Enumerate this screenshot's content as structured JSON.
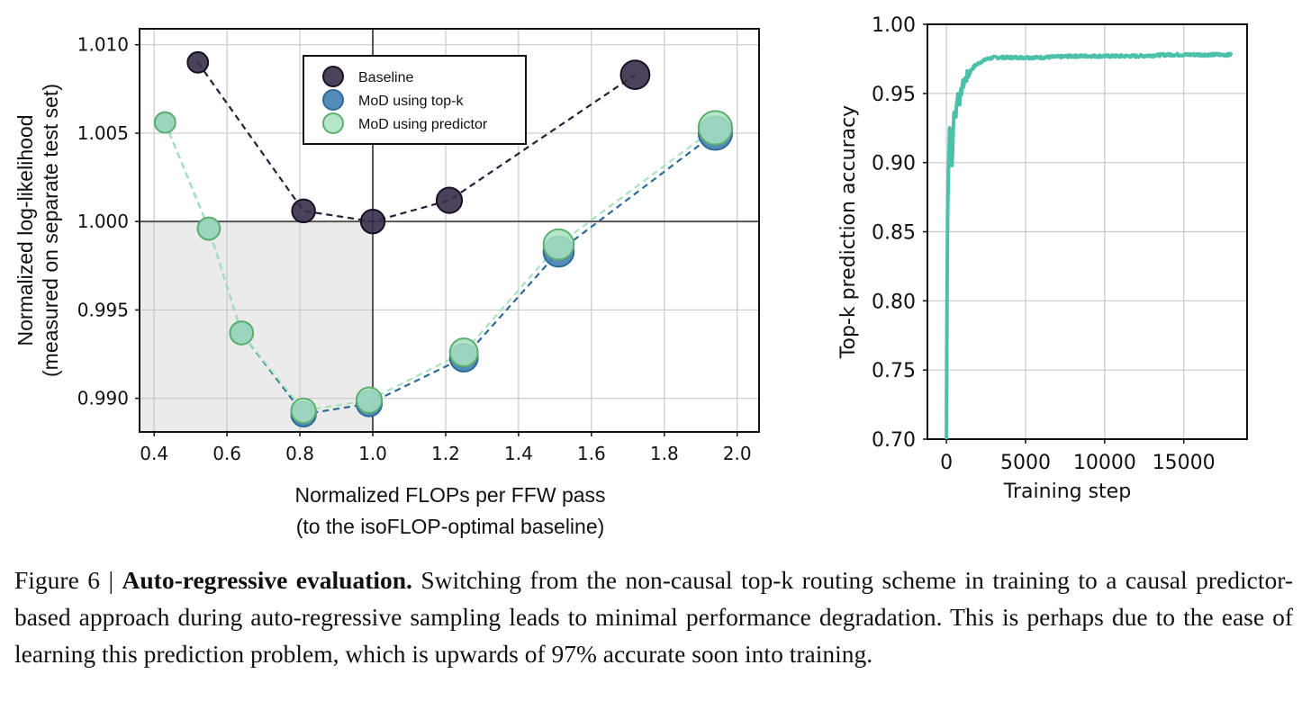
{
  "chart_data": [
    {
      "type": "scatter",
      "ylabel_lines": [
        "Normalized log-likelihood",
        "(measured on separate test set)"
      ],
      "xlabel_lines": [
        "Normalized FLOPs per FFW pass",
        "(to the isoFLOP-optimal baseline)"
      ],
      "xlim": [
        0.36,
        2.06
      ],
      "ylim": [
        0.9881,
        1.0109
      ],
      "xticks": [
        "0.4",
        "0.6",
        "0.8",
        "1.0",
        "1.2",
        "1.4",
        "1.6",
        "1.8",
        "2.0"
      ],
      "yticks": [
        "0.990",
        "0.995",
        "1.000",
        "1.005",
        "1.010"
      ],
      "grid": true,
      "legend_position": "top-center",
      "reference_lines": {
        "x": 1.0,
        "y": 1.0
      },
      "shaded_region": {
        "x": [
          0.36,
          1.0
        ],
        "y": [
          0.9881,
          1.0
        ]
      },
      "series": [
        {
          "name": "Baseline",
          "color": "#2a1c3a",
          "x": [
            0.52,
            0.81,
            1.0,
            1.21,
            1.72
          ],
          "y": [
            1.009,
            1.0006,
            1.0,
            1.0012,
            1.0083
          ],
          "size": [
            0.6,
            0.75,
            0.8,
            0.9,
            1.1
          ]
        },
        {
          "name": "MoD using top-k",
          "color": "#3e7bab",
          "x": [
            0.43,
            0.55,
            0.64,
            0.81,
            0.99,
            1.25,
            1.51,
            1.94
          ],
          "y": [
            1.0056,
            0.9996,
            0.9937,
            0.9891,
            0.9897,
            0.9923,
            0.9983,
            1.005
          ],
          "size": [
            0.6,
            0.7,
            0.75,
            0.85,
            0.9,
            1.05,
            1.2,
            1.4
          ]
        },
        {
          "name": "MoD using predictor",
          "color": "#9fdeb5",
          "x": [
            0.43,
            0.55,
            0.64,
            0.81,
            0.99,
            1.25,
            1.51,
            1.94
          ],
          "y": [
            1.0056,
            0.9996,
            0.9937,
            0.9893,
            0.9899,
            0.9926,
            0.9987,
            1.0053
          ],
          "size": [
            0.6,
            0.7,
            0.75,
            0.85,
            0.9,
            1.05,
            1.2,
            1.4
          ]
        }
      ]
    },
    {
      "type": "line",
      "ylabel": "Top-k prediction accuracy",
      "xlabel": "Training step",
      "xlim": [
        -1200,
        19000
      ],
      "ylim": [
        0.7,
        1.0
      ],
      "xticks": [
        "0",
        "5000",
        "10000",
        "15000"
      ],
      "yticks": [
        "0.70",
        "0.75",
        "0.80",
        "0.85",
        "0.90",
        "0.95",
        "1.00"
      ],
      "grid": true,
      "color": "#4cc1aa",
      "series": [
        {
          "x": [
            0,
            60,
            120,
            200,
            280,
            350,
            420,
            500,
            600,
            700,
            850,
            1000,
            1200,
            1500,
            1800,
            2200,
            2600,
            3000,
            4000,
            5000,
            6000,
            8000,
            10000,
            12000,
            14000,
            16000,
            18000
          ],
          "y": [
            0.7,
            0.86,
            0.89,
            0.925,
            0.905,
            0.895,
            0.92,
            0.94,
            0.935,
            0.95,
            0.945,
            0.955,
            0.96,
            0.966,
            0.97,
            0.973,
            0.975,
            0.976,
            0.976,
            0.976,
            0.976,
            0.977,
            0.977,
            0.977,
            0.978,
            0.978,
            0.978
          ]
        }
      ]
    }
  ],
  "caption": {
    "label": "Figure 6 | ",
    "bold": "Auto-regressive evaluation.",
    "text": "  Switching from the non-causal top-k routing scheme in training to a causal predictor-based approach during auto-regressive sampling leads to minimal performance degradation. This is perhaps due to the ease of learning this prediction problem, which is upwards of 97% accurate soon into training."
  }
}
